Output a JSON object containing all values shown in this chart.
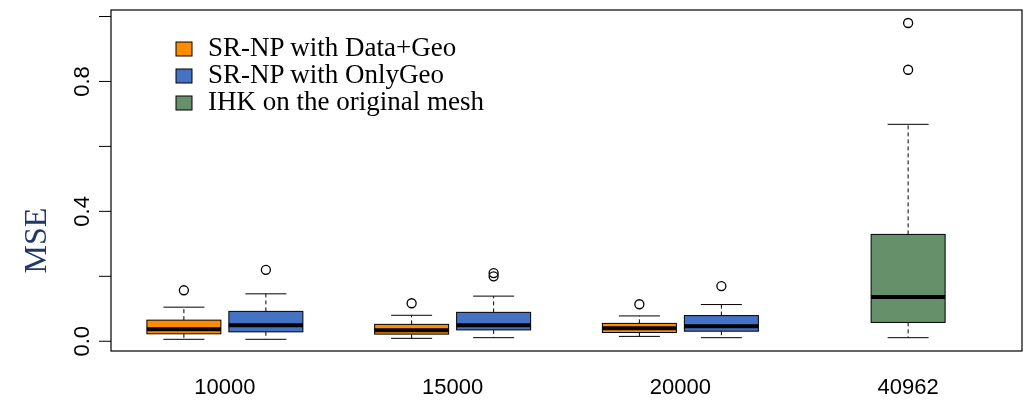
{
  "chart_data": {
    "type": "box",
    "ylabel": "MSE",
    "categories": [
      "10000",
      "15000",
      "20000",
      "40962"
    ],
    "ylim": [
      -0.03,
      1.02
    ],
    "yticks": [
      {
        "value": 0,
        "label": "0.0"
      },
      {
        "value": 0.2,
        "label": null
      },
      {
        "value": 0.4,
        "label": "0.4"
      },
      {
        "value": 0.6,
        "label": null
      },
      {
        "value": 0.8,
        "label": "0.8"
      },
      {
        "value": 1.0,
        "label": null
      }
    ],
    "legend": "top left",
    "grid": false,
    "series": [
      {
        "name": "SR-NP with Data+Geo",
        "color": "#ff8c00",
        "boxes": [
          {
            "low": 0.006,
            "q1": 0.023,
            "median": 0.037,
            "q3": 0.065,
            "high": 0.105,
            "outliers": [
              0.157
            ]
          },
          {
            "low": 0.009,
            "q1": 0.022,
            "median": 0.034,
            "q3": 0.052,
            "high": 0.08,
            "outliers": [
              0.117
            ]
          },
          {
            "low": 0.015,
            "q1": 0.027,
            "median": 0.04,
            "q3": 0.055,
            "high": 0.078,
            "outliers": [
              0.114
            ]
          },
          null
        ]
      },
      {
        "name": "SR-NP with OnlyGeo",
        "color": "#4472c4",
        "boxes": [
          {
            "low": 0.006,
            "q1": 0.029,
            "median": 0.049,
            "q3": 0.092,
            "high": 0.146,
            "outliers": [
              0.22
            ]
          },
          {
            "low": 0.011,
            "q1": 0.035,
            "median": 0.049,
            "q3": 0.089,
            "high": 0.139,
            "outliers": [
              0.2,
              0.21
            ]
          },
          {
            "low": 0.011,
            "q1": 0.031,
            "median": 0.046,
            "q3": 0.079,
            "high": 0.113,
            "outliers": [
              0.17
            ]
          },
          null
        ]
      },
      {
        "name": "IHK on the original mesh",
        "color": "#66906a",
        "boxes": [
          null,
          null,
          null,
          {
            "low": 0.011,
            "q1": 0.058,
            "median": 0.136,
            "q3": 0.329,
            "high": 0.668,
            "outliers": [
              0.836,
              0.98
            ]
          }
        ]
      }
    ]
  }
}
